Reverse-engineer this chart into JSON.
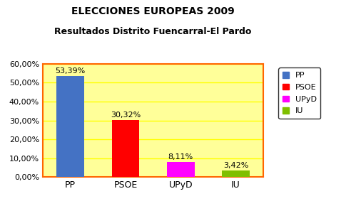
{
  "title_line1": "ELECCIONES EUROPEAS 2009",
  "title_line2": "Resultados Distrito Fuencarral-El Pardo",
  "categories": [
    "PP",
    "PSOE",
    "UPyD",
    "IU"
  ],
  "values": [
    53.39,
    30.32,
    8.11,
    3.42
  ],
  "bar_colors": [
    "#4472C4",
    "#FF0000",
    "#FF00FF",
    "#7FBF00"
  ],
  "value_labels": [
    "53,39%",
    "30,32%",
    "8,11%",
    "3,42%"
  ],
  "legend_labels": [
    "PP",
    "PSOE",
    "UPyD",
    "IU"
  ],
  "ylim": [
    0,
    60
  ],
  "yticks": [
    0,
    10,
    20,
    30,
    40,
    50,
    60
  ],
  "ytick_labels": [
    "0,00%",
    "10,00%",
    "20,00%",
    "30,00%",
    "40,00%",
    "50,00%",
    "60,00%"
  ],
  "plot_bg_color": "#FFFF99",
  "outer_bg_color": "#FFFFFF",
  "border_color": "#FF6600",
  "grid_color": "#FFFF00",
  "title_fontsize": 10,
  "subtitle_fontsize": 9,
  "tick_fontsize": 8,
  "annotation_fontsize": 8
}
